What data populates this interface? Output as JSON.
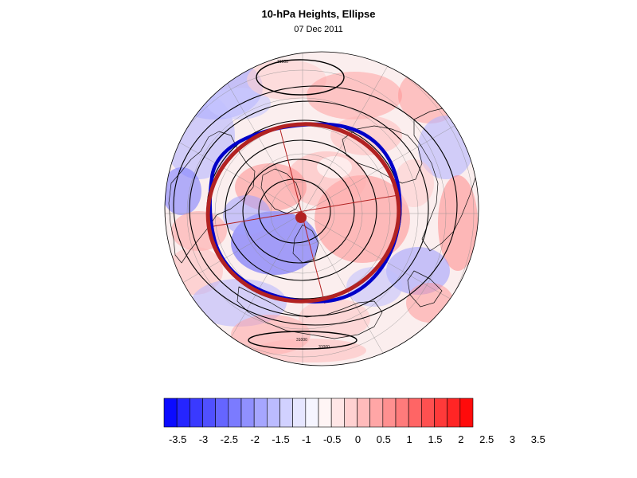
{
  "title": "10-hPa Heights, Ellipse",
  "subtitle": "07 Dec 2011",
  "map": {
    "projection": "polar-stereographic-north",
    "field": "standardized height anomaly",
    "contour_labels": [
      "31000",
      "31000",
      "31000"
    ],
    "ellipse_fit_color": "#b22222",
    "ellipse_contour_color": "#0000c8",
    "center_marker_color": "#b22222"
  },
  "colorbar": {
    "levels": [
      "-3.5",
      "-3",
      "-2.5",
      "-2",
      "-1.5",
      "-1",
      "-0.5",
      "0",
      "0.5",
      "1",
      "1.5",
      "2",
      "2.5",
      "3",
      "3.5"
    ],
    "colors": [
      "#0b0bff",
      "#2525ff",
      "#3a3aff",
      "#5050ff",
      "#6565ff",
      "#7b7bff",
      "#9090ff",
      "#a6a6ff",
      "#bbbbff",
      "#d1d1ff",
      "#e6e6ff",
      "#f5f5ff",
      "#fff5f5",
      "#ffe6e6",
      "#ffd1d1",
      "#ffbbbb",
      "#ffa6a6",
      "#ff9090",
      "#ff7b7b",
      "#ff6565",
      "#ff5050",
      "#ff3a3a",
      "#ff2525",
      "#ff0b0b"
    ]
  }
}
